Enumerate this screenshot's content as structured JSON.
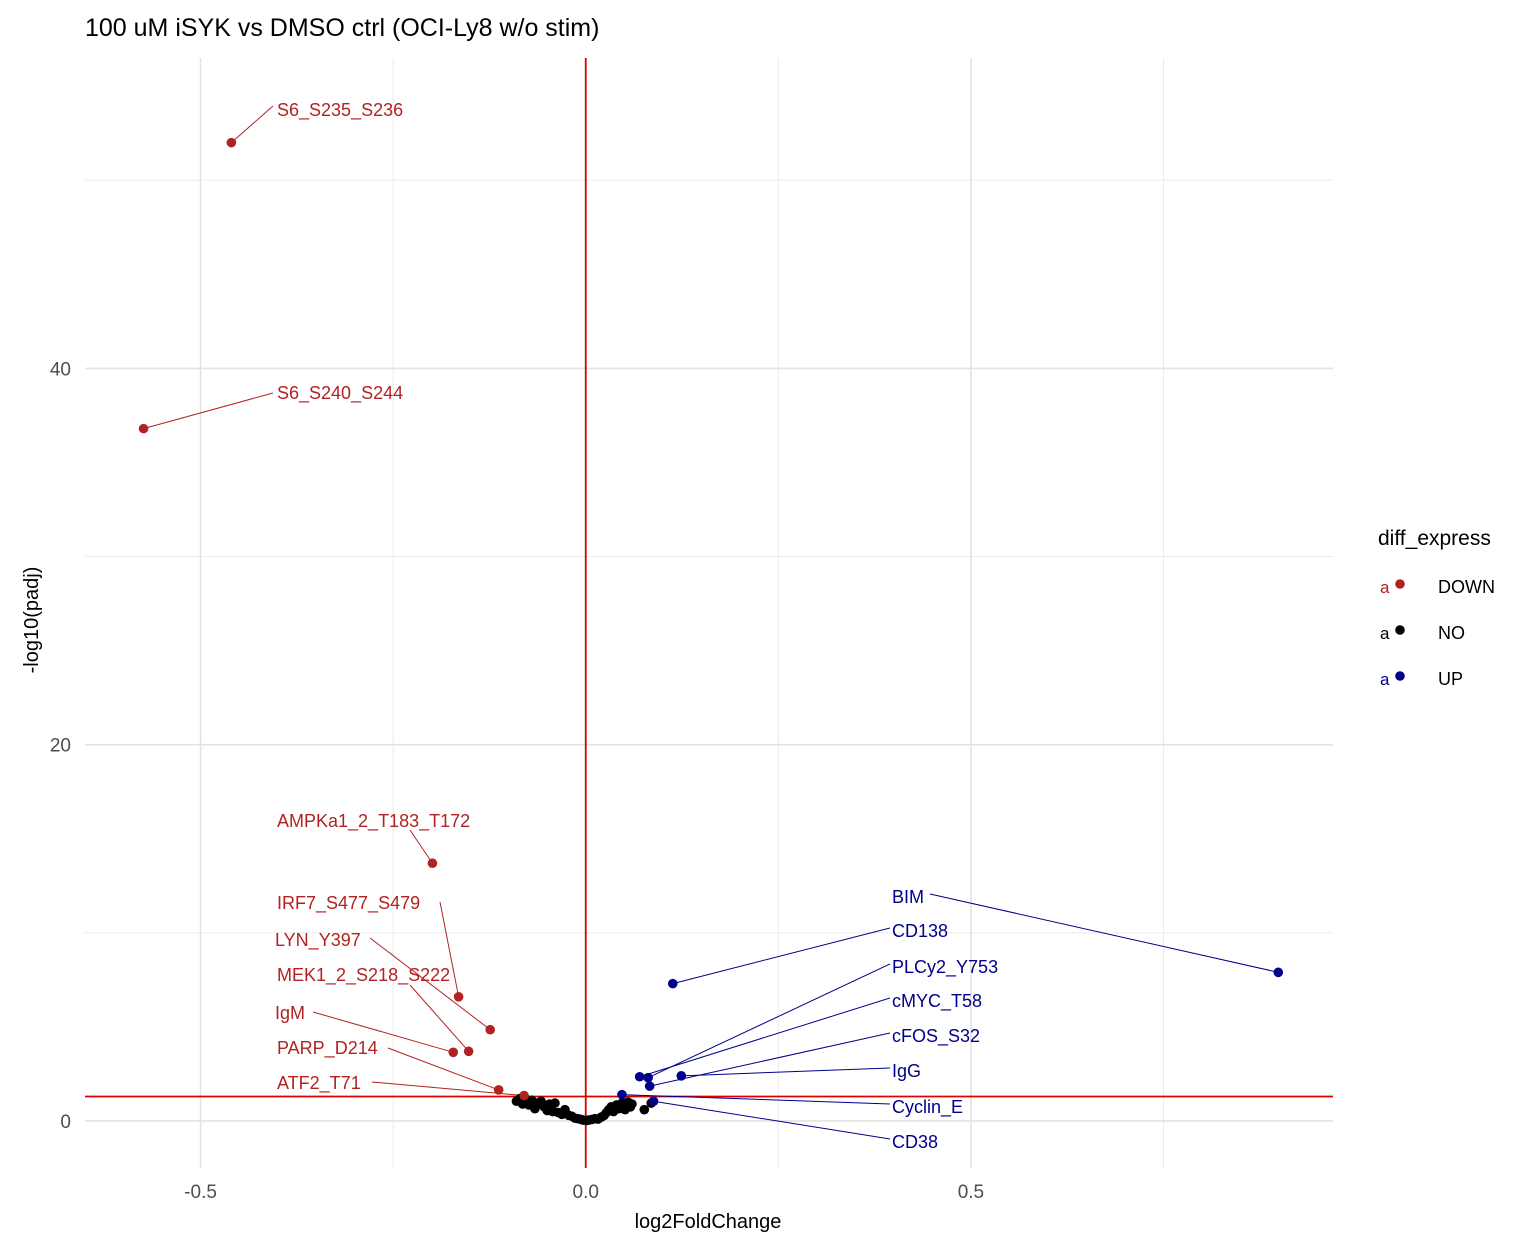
{
  "chart_data": {
    "type": "scatter",
    "title": "100 uM iSYK vs DMSO ctrl (OCI-Ly8 w/o stim)",
    "xlabel": "log2FoldChange",
    "ylabel": "-log10(padj)",
    "xlim": [
      -0.65,
      0.97
    ],
    "ylim": [
      -2.5,
      56.5
    ],
    "x_ticks": [
      {
        "value": -0.5,
        "label": "-0.5"
      },
      {
        "value": 0.0,
        "label": "0.0"
      },
      {
        "value": 0.5,
        "label": "0.5"
      }
    ],
    "y_ticks": [
      {
        "value": 0,
        "label": "0"
      },
      {
        "value": 20,
        "label": "20"
      },
      {
        "value": 40,
        "label": "40"
      }
    ],
    "x_minor_grid": [
      -0.25,
      0.25,
      0.75
    ],
    "y_minor_grid": [
      10,
      30,
      50
    ],
    "grid": true,
    "vline_x": 0,
    "hline_y": 1.3,
    "reference_line_color": "#dd0000",
    "colors": {
      "DOWN": "#b22222",
      "NO": "#000000",
      "UP": "#00008b"
    },
    "legend": {
      "title": "diff_express",
      "position": "right",
      "key_letter": "a",
      "entries": [
        {
          "label": "DOWN",
          "color": "#b22222"
        },
        {
          "label": "NO",
          "color": "#000000"
        },
        {
          "label": "UP",
          "color": "#00008b"
        }
      ]
    },
    "labeled_points": [
      {
        "name": "S6_S235_S236",
        "x": -0.46,
        "y": 52.0,
        "group": "DOWN"
      },
      {
        "name": "S6_S240_S244",
        "x": -0.574,
        "y": 36.8,
        "group": "DOWN"
      },
      {
        "name": "AMPKa1_2_T183_T172",
        "x": -0.199,
        "y": 13.7,
        "group": "DOWN"
      },
      {
        "name": "IRF7_S477_S479",
        "x": -0.165,
        "y": 6.6,
        "group": "DOWN"
      },
      {
        "name": "LYN_Y397",
        "x": -0.124,
        "y": 4.85,
        "group": "DOWN"
      },
      {
        "name": "MEK1_2_S218_S222",
        "x": -0.152,
        "y": 3.7,
        "group": "DOWN"
      },
      {
        "name": "IgM",
        "x": -0.172,
        "y": 3.65,
        "group": "DOWN"
      },
      {
        "name": "PARP_D214",
        "x": -0.113,
        "y": 1.65,
        "group": "DOWN"
      },
      {
        "name": "ATF2_T71",
        "x": -0.08,
        "y": 1.35,
        "group": "DOWN"
      },
      {
        "name": "BIM",
        "x": 0.899,
        "y": 7.9,
        "group": "UP"
      },
      {
        "name": "CD138",
        "x": 0.113,
        "y": 7.3,
        "group": "UP"
      },
      {
        "name": "PLCy2_Y753",
        "x": 0.081,
        "y": 2.3,
        "group": "UP"
      },
      {
        "name": "cMYC_T58",
        "x": 0.07,
        "y": 2.35,
        "group": "UP"
      },
      {
        "name": "cFOS_S32",
        "x": 0.083,
        "y": 1.85,
        "group": "UP"
      },
      {
        "name": "IgG",
        "x": 0.124,
        "y": 2.4,
        "group": "UP"
      },
      {
        "name": "Cyclin_E",
        "x": 0.047,
        "y": 1.4,
        "group": "UP"
      },
      {
        "name": "CD38",
        "x": 0.088,
        "y": 1.05,
        "group": "UP"
      }
    ],
    "other_points": [
      {
        "x": -0.09,
        "y": 1.05,
        "group": "NO"
      },
      {
        "x": -0.085,
        "y": 1.2,
        "group": "NO"
      },
      {
        "x": -0.082,
        "y": 0.9,
        "group": "NO"
      },
      {
        "x": -0.077,
        "y": 1.15,
        "group": "NO"
      },
      {
        "x": -0.074,
        "y": 0.85,
        "group": "NO"
      },
      {
        "x": -0.07,
        "y": 1.1,
        "group": "NO"
      },
      {
        "x": -0.066,
        "y": 0.65,
        "group": "NO"
      },
      {
        "x": -0.062,
        "y": 0.95,
        "group": "NO"
      },
      {
        "x": -0.058,
        "y": 1.05,
        "group": "NO"
      },
      {
        "x": -0.054,
        "y": 0.75,
        "group": "NO"
      },
      {
        "x": -0.05,
        "y": 0.55,
        "group": "NO"
      },
      {
        "x": -0.047,
        "y": 0.9,
        "group": "NO"
      },
      {
        "x": -0.043,
        "y": 0.5,
        "group": "NO"
      },
      {
        "x": -0.04,
        "y": 0.95,
        "group": "NO"
      },
      {
        "x": -0.036,
        "y": 0.45,
        "group": "NO"
      },
      {
        "x": -0.031,
        "y": 0.35,
        "group": "NO"
      },
      {
        "x": -0.027,
        "y": 0.6,
        "group": "NO"
      },
      {
        "x": -0.022,
        "y": 0.3,
        "group": "NO"
      },
      {
        "x": -0.018,
        "y": 0.25,
        "group": "NO"
      },
      {
        "x": -0.014,
        "y": 0.15,
        "group": "NO"
      },
      {
        "x": -0.01,
        "y": 0.12,
        "group": "NO"
      },
      {
        "x": -0.006,
        "y": 0.08,
        "group": "NO"
      },
      {
        "x": -0.003,
        "y": 0.04,
        "group": "NO"
      },
      {
        "x": 0.001,
        "y": 0.03,
        "group": "NO"
      },
      {
        "x": 0.004,
        "y": 0.05,
        "group": "NO"
      },
      {
        "x": 0.008,
        "y": 0.08,
        "group": "NO"
      },
      {
        "x": 0.012,
        "y": 0.12,
        "group": "NO"
      },
      {
        "x": 0.016,
        "y": 0.1,
        "group": "NO"
      },
      {
        "x": 0.02,
        "y": 0.2,
        "group": "NO"
      },
      {
        "x": 0.024,
        "y": 0.3,
        "group": "NO"
      },
      {
        "x": 0.027,
        "y": 0.45,
        "group": "NO"
      },
      {
        "x": 0.03,
        "y": 0.6,
        "group": "NO"
      },
      {
        "x": 0.033,
        "y": 0.75,
        "group": "NO"
      },
      {
        "x": 0.036,
        "y": 0.5,
        "group": "NO"
      },
      {
        "x": 0.04,
        "y": 0.85,
        "group": "NO"
      },
      {
        "x": 0.043,
        "y": 0.65,
        "group": "NO"
      },
      {
        "x": 0.047,
        "y": 0.95,
        "group": "NO"
      },
      {
        "x": 0.051,
        "y": 0.6,
        "group": "NO"
      },
      {
        "x": 0.055,
        "y": 1.0,
        "group": "NO"
      },
      {
        "x": 0.058,
        "y": 0.75,
        "group": "NO"
      },
      {
        "x": 0.06,
        "y": 0.9,
        "group": "NO"
      },
      {
        "x": 0.076,
        "y": 0.6,
        "group": "NO"
      },
      {
        "x": 0.085,
        "y": 0.95,
        "group": "NO"
      }
    ]
  }
}
